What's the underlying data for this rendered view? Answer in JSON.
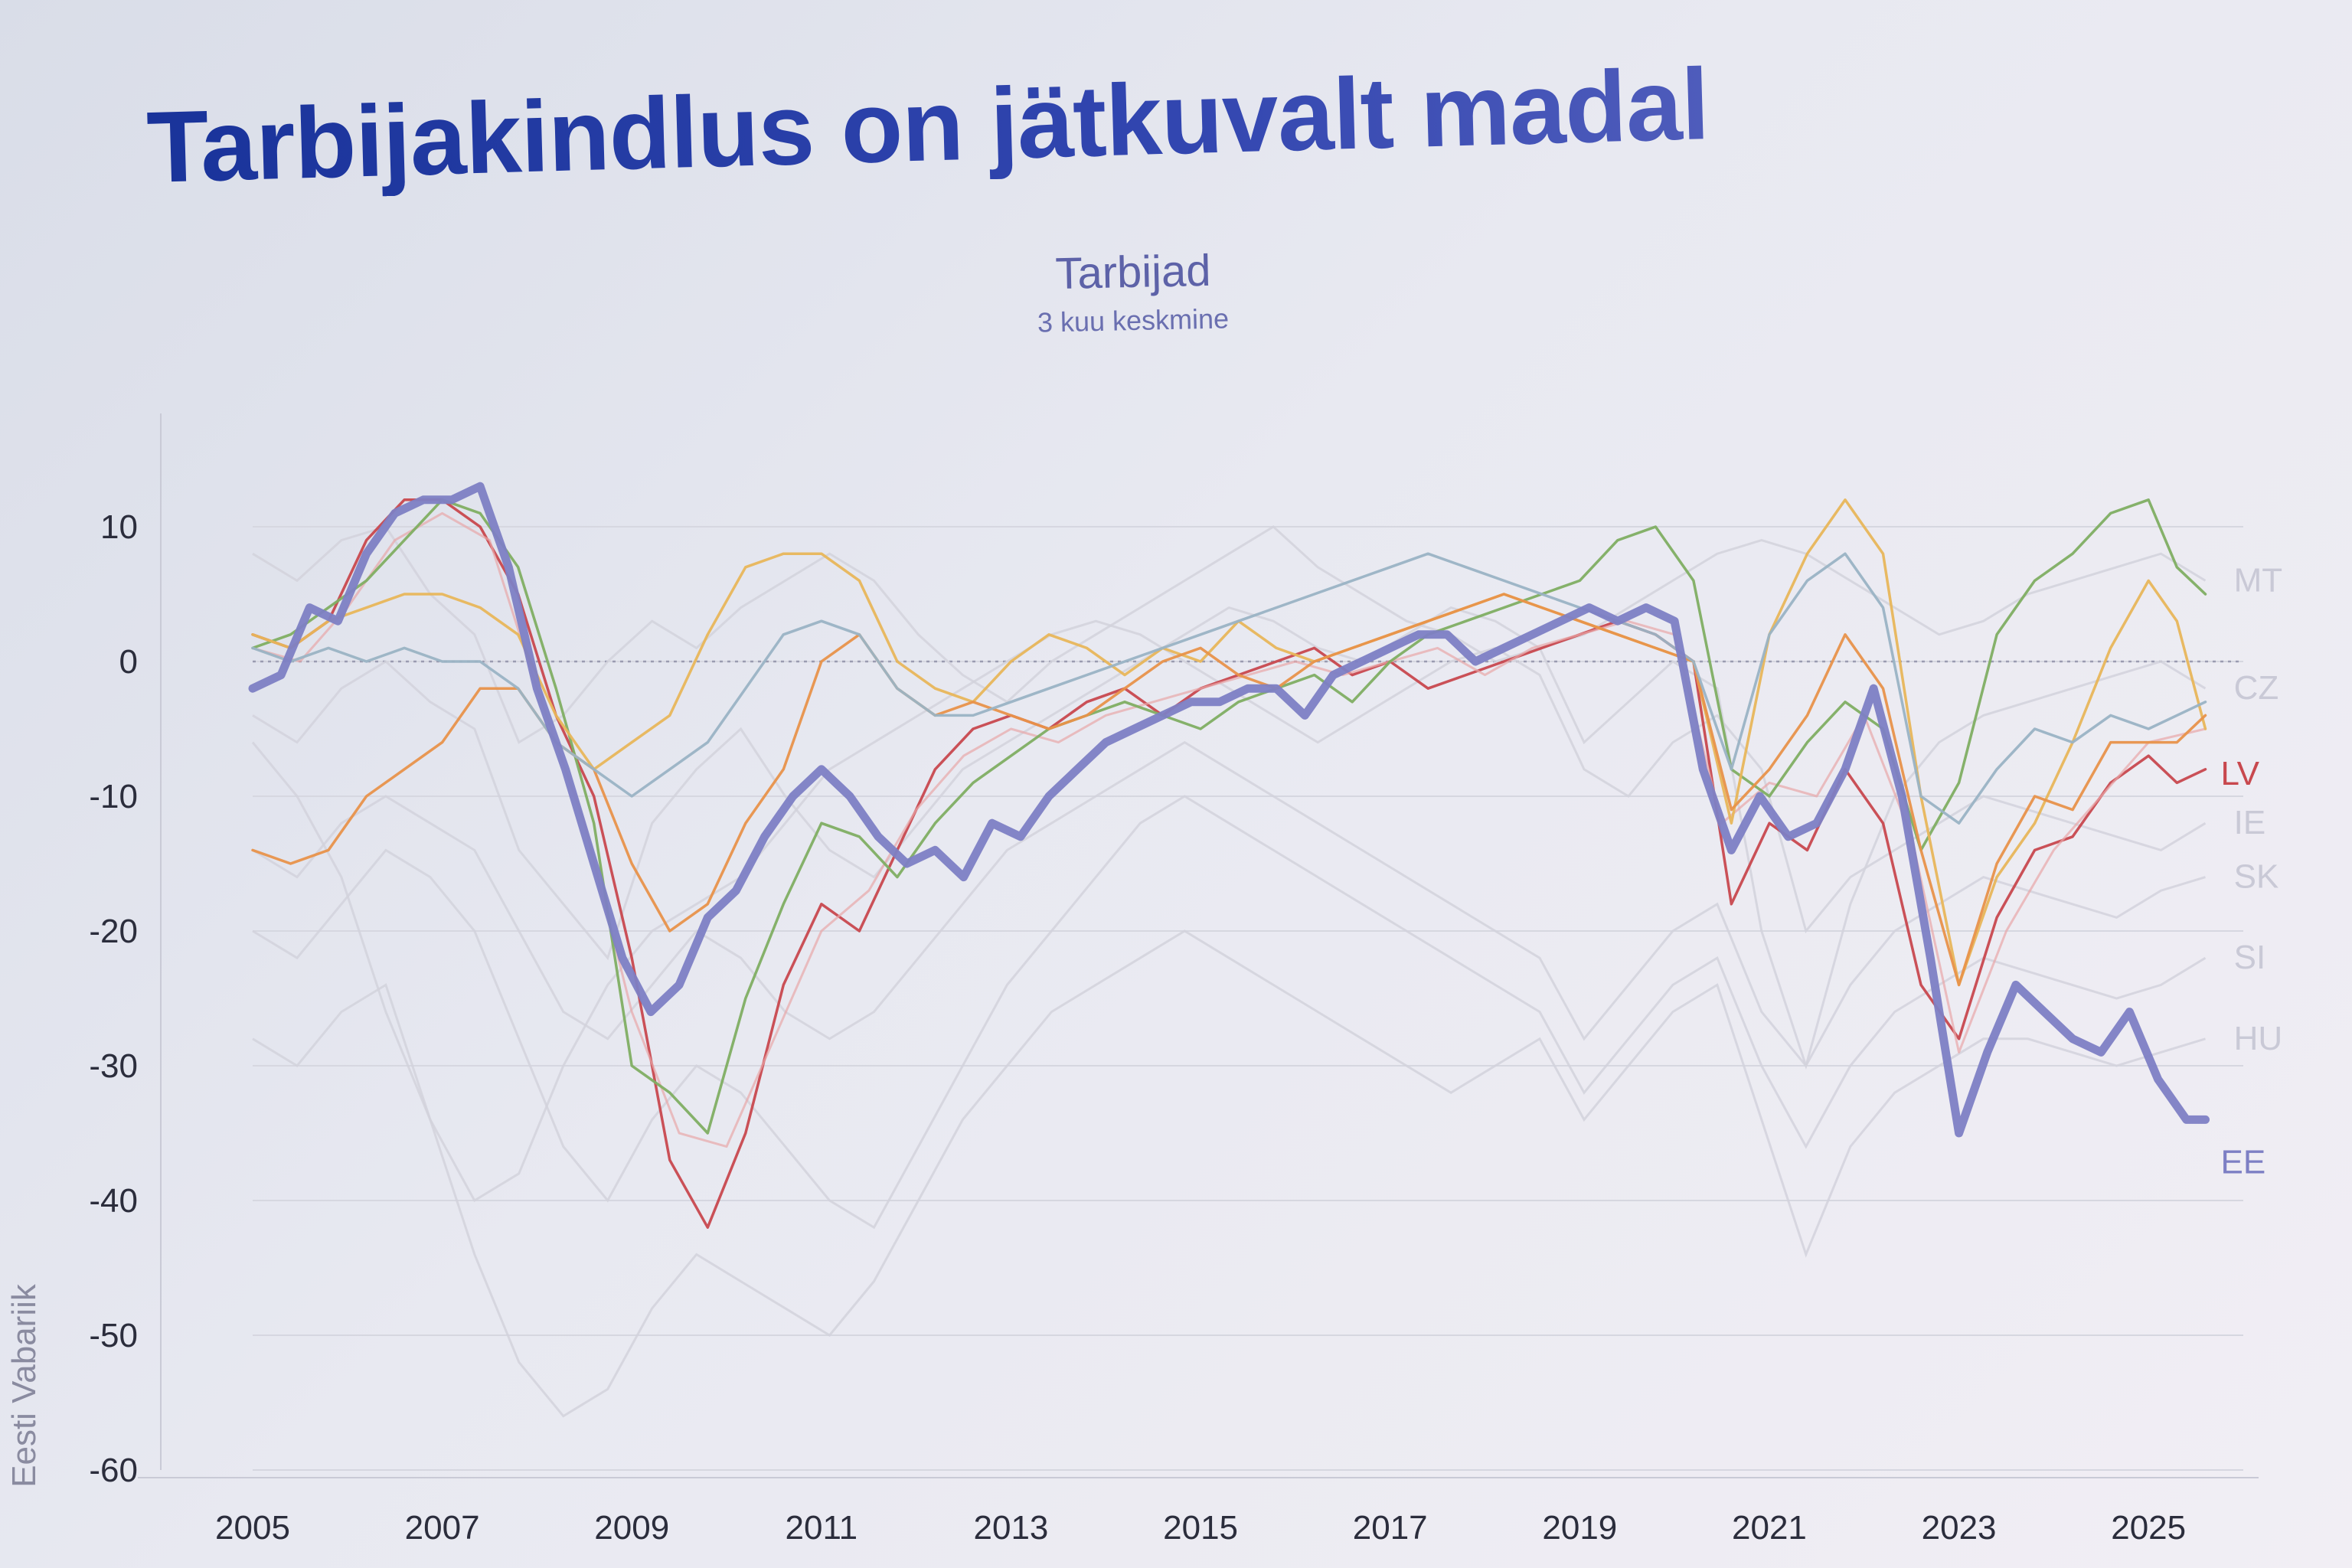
{
  "slide": {
    "title": "Tarbijakindlus on jätkuvalt madal",
    "subtitle": "Tarbijad",
    "subnote": "3 kuu keskmine"
  },
  "chart_data": {
    "type": "line",
    "ylabel": "Eesti Vabariik",
    "ylim": [
      -60,
      15
    ],
    "xlim": [
      2005,
      2026
    ],
    "yticks": [
      10,
      0,
      -10,
      -20,
      -30,
      -40,
      -50,
      -60
    ],
    "xticks": [
      2005,
      2007,
      2009,
      2011,
      2013,
      2015,
      2017,
      2019,
      2021,
      2023,
      2025
    ],
    "reference_line": 0,
    "series": [
      {
        "name": "EE",
        "color": "#7d7fc4",
        "highlight": true,
        "x": [
          2005.0,
          2005.3,
          2005.6,
          2005.9,
          2006.2,
          2006.5,
          2006.8,
          2007.1,
          2007.4,
          2007.7,
          2008.0,
          2008.3,
          2008.6,
          2008.9,
          2009.2,
          2009.5,
          2009.8,
          2010.1,
          2010.4,
          2010.7,
          2011.0,
          2011.3,
          2011.6,
          2011.9,
          2012.2,
          2012.5,
          2012.8,
          2013.1,
          2013.4,
          2013.7,
          2014.0,
          2014.3,
          2014.6,
          2014.9,
          2015.2,
          2015.5,
          2015.8,
          2016.1,
          2016.4,
          2016.7,
          2017.0,
          2017.3,
          2017.6,
          2017.9,
          2018.2,
          2018.5,
          2018.8,
          2019.1,
          2019.4,
          2019.7,
          2020.0,
          2020.3,
          2020.6,
          2020.9,
          2021.2,
          2021.5,
          2021.8,
          2022.1,
          2022.4,
          2022.7,
          2023.0,
          2023.3,
          2023.6,
          2023.9,
          2024.2,
          2024.5,
          2024.8,
          2025.1,
          2025.4,
          2025.6
        ],
        "y": [
          -2,
          -1,
          4,
          3,
          8,
          11,
          12,
          12,
          13,
          7,
          -2,
          -8,
          -15,
          -22,
          -26,
          -24,
          -19,
          -17,
          -13,
          -10,
          -8,
          -10,
          -13,
          -15,
          -14,
          -16,
          -12,
          -13,
          -10,
          -8,
          -6,
          -5,
          -4,
          -3,
          -3,
          -2,
          -2,
          -4,
          -1,
          0,
          1,
          2,
          2,
          0,
          1,
          2,
          3,
          4,
          3,
          4,
          3,
          -8,
          -14,
          -10,
          -13,
          -12,
          -8,
          -2,
          -10,
          -22,
          -35,
          -29,
          -24,
          -26,
          -28,
          -29,
          -26,
          -31,
          -34,
          -34
        ]
      },
      {
        "name": "LV",
        "color": "#c8484e",
        "x": [
          2005.0,
          2005.4,
          2005.8,
          2006.2,
          2006.6,
          2007.0,
          2007.4,
          2007.8,
          2008.2,
          2008.6,
          2009.0,
          2009.4,
          2009.8,
          2010.2,
          2010.6,
          2011.0,
          2011.4,
          2011.8,
          2012.2,
          2012.6,
          2013.0,
          2013.4,
          2013.8,
          2014.2,
          2014.6,
          2015.0,
          2015.4,
          2015.8,
          2016.2,
          2016.6,
          2017.0,
          2017.4,
          2017.8,
          2018.2,
          2018.6,
          2019.0,
          2019.4,
          2019.8,
          2020.2,
          2020.6,
          2021.0,
          2021.4,
          2021.8,
          2022.2,
          2022.6,
          2023.0,
          2023.4,
          2023.8,
          2024.2,
          2024.6,
          2025.0,
          2025.3,
          2025.6
        ],
        "y": [
          2,
          1,
          3,
          9,
          12,
          12,
          10,
          5,
          -4,
          -10,
          -22,
          -37,
          -42,
          -35,
          -24,
          -18,
          -20,
          -14,
          -8,
          -5,
          -4,
          -5,
          -3,
          -2,
          -4,
          -2,
          -1,
          0,
          1,
          -1,
          0,
          -2,
          -1,
          0,
          1,
          2,
          3,
          2,
          0,
          -18,
          -12,
          -14,
          -8,
          -12,
          -24,
          -28,
          -19,
          -14,
          -13,
          -9,
          -7,
          -9,
          -8
        ]
      },
      {
        "name": "",
        "color": "#e8a6a8",
        "faint": true,
        "x": [
          2005.0,
          2005.5,
          2006.0,
          2006.5,
          2007.0,
          2007.5,
          2008.0,
          2008.5,
          2009.0,
          2009.5,
          2010.0,
          2010.5,
          2011.0,
          2011.5,
          2012.0,
          2012.5,
          2013.0,
          2013.5,
          2014.0,
          2014.5,
          2015.0,
          2015.5,
          2016.0,
          2016.5,
          2017.0,
          2017.5,
          2018.0,
          2018.5,
          2019.0,
          2019.5,
          2020.0,
          2020.5,
          2021.0,
          2021.5,
          2022.0,
          2022.5,
          2023.0,
          2023.5,
          2024.0,
          2024.5,
          2025.0,
          2025.6
        ],
        "y": [
          1,
          0,
          4,
          9,
          11,
          9,
          -2,
          -12,
          -26,
          -35,
          -36,
          -28,
          -20,
          -17,
          -11,
          -7,
          -5,
          -6,
          -4,
          -3,
          -2,
          -1,
          0,
          -1,
          0,
          1,
          -1,
          1,
          2,
          3,
          2,
          -12,
          -9,
          -10,
          -4,
          -13,
          -29,
          -20,
          -14,
          -10,
          -6,
          -5
        ]
      },
      {
        "name": "",
        "color": "#7fae62",
        "x": [
          2005.0,
          2005.4,
          2005.8,
          2006.2,
          2006.6,
          2007.0,
          2007.4,
          2007.8,
          2008.2,
          2008.6,
          2009.0,
          2009.4,
          2009.8,
          2010.2,
          2010.6,
          2011.0,
          2011.4,
          2011.8,
          2012.2,
          2012.6,
          2013.0,
          2013.4,
          2013.8,
          2014.2,
          2014.6,
          2015.0,
          2015.4,
          2015.8,
          2016.2,
          2016.6,
          2017.0,
          2017.4,
          2017.8,
          2018.2,
          2018.6,
          2019.0,
          2019.4,
          2019.8,
          2020.2,
          2020.6,
          2021.0,
          2021.4,
          2021.8,
          2022.2,
          2022.6,
          2023.0,
          2023.4,
          2023.8,
          2024.2,
          2024.6,
          2025.0,
          2025.3,
          2025.6
        ],
        "y": [
          1,
          2,
          4,
          6,
          9,
          12,
          11,
          7,
          -2,
          -12,
          -30,
          -32,
          -35,
          -25,
          -18,
          -12,
          -13,
          -16,
          -12,
          -9,
          -7,
          -5,
          -4,
          -3,
          -4,
          -5,
          -3,
          -2,
          -1,
          -3,
          0,
          2,
          3,
          4,
          5,
          6,
          9,
          10,
          6,
          -8,
          -10,
          -6,
          -3,
          -5,
          -14,
          -9,
          2,
          6,
          8,
          11,
          12,
          7,
          5
        ]
      },
      {
        "name": "",
        "color": "#e8b65a",
        "x": [
          2005.0,
          2005.4,
          2005.8,
          2006.2,
          2006.6,
          2007.0,
          2007.4,
          2007.8,
          2008.2,
          2008.6,
          2009.0,
          2009.4,
          2009.8,
          2010.2,
          2010.6,
          2011.0,
          2011.4,
          2011.8,
          2012.2,
          2012.6,
          2013.0,
          2013.4,
          2013.8,
          2014.2,
          2014.6,
          2015.0,
          2015.4,
          2015.8,
          2016.2,
          2016.6,
          2017.0,
          2017.4,
          2017.8,
          2018.2,
          2018.6,
          2019.0,
          2019.4,
          2019.8,
          2020.2,
          2020.6,
          2021.0,
          2021.4,
          2021.8,
          2022.2,
          2022.6,
          2023.0,
          2023.4,
          2023.8,
          2024.2,
          2024.6,
          2025.0,
          2025.3,
          2025.6
        ],
        "y": [
          2,
          1,
          3,
          4,
          5,
          5,
          4,
          2,
          -4,
          -8,
          -6,
          -4,
          2,
          7,
          8,
          8,
          6,
          0,
          -2,
          -3,
          0,
          2,
          1,
          -1,
          1,
          0,
          3,
          1,
          0,
          1,
          2,
          3,
          4,
          5,
          4,
          3,
          2,
          1,
          0,
          -12,
          2,
          8,
          12,
          8,
          -10,
          -24,
          -16,
          -12,
          -6,
          1,
          6,
          3,
          -5
        ]
      },
      {
        "name": "",
        "color": "#e8924a",
        "x": [
          2005.0,
          2005.4,
          2005.8,
          2006.2,
          2006.6,
          2007.0,
          2007.4,
          2007.8,
          2008.2,
          2008.6,
          2009.0,
          2009.4,
          2009.8,
          2010.2,
          2010.6,
          2011.0,
          2011.4,
          2011.8,
          2012.2,
          2012.6,
          2013.0,
          2013.4,
          2013.8,
          2014.2,
          2014.6,
          2015.0,
          2015.4,
          2015.8,
          2016.2,
          2016.6,
          2017.0,
          2017.4,
          2017.8,
          2018.2,
          2018.6,
          2019.0,
          2019.4,
          2019.8,
          2020.2,
          2020.6,
          2021.0,
          2021.4,
          2021.8,
          2022.2,
          2022.6,
          2023.0,
          2023.4,
          2023.8,
          2024.2,
          2024.6,
          2025.0,
          2025.3,
          2025.6
        ],
        "y": [
          -14,
          -15,
          -14,
          -10,
          -8,
          -6,
          -2,
          -2,
          -6,
          -8,
          -15,
          -20,
          -18,
          -12,
          -8,
          0,
          2,
          -2,
          -4,
          -3,
          -4,
          -5,
          -4,
          -2,
          0,
          1,
          -1,
          -2,
          0,
          1,
          2,
          3,
          4,
          5,
          4,
          3,
          2,
          1,
          0,
          -11,
          -8,
          -4,
          2,
          -2,
          -14,
          -24,
          -15,
          -10,
          -11,
          -6,
          -6,
          -6,
          -4
        ]
      },
      {
        "name": "",
        "color": "#9ab3c4",
        "x": [
          2005.0,
          2005.4,
          2005.8,
          2006.2,
          2006.6,
          2007.0,
          2007.4,
          2007.8,
          2008.2,
          2008.6,
          2009.0,
          2009.4,
          2009.8,
          2010.2,
          2010.6,
          2011.0,
          2011.4,
          2011.8,
          2012.2,
          2012.6,
          2013.0,
          2013.4,
          2013.8,
          2014.2,
          2014.6,
          2015.0,
          2015.4,
          2015.8,
          2016.2,
          2016.6,
          2017.0,
          2017.4,
          2017.8,
          2018.2,
          2018.6,
          2019.0,
          2019.4,
          2019.8,
          2020.2,
          2020.6,
          2021.0,
          2021.4,
          2021.8,
          2022.2,
          2022.6,
          2023.0,
          2023.4,
          2023.8,
          2024.2,
          2024.6,
          2025.0,
          2025.3,
          2025.6
        ],
        "y": [
          1,
          0,
          1,
          0,
          1,
          0,
          0,
          -2,
          -6,
          -8,
          -10,
          -8,
          -6,
          -2,
          2,
          3,
          2,
          -2,
          -4,
          -4,
          -3,
          -2,
          -1,
          0,
          1,
          2,
          3,
          4,
          5,
          6,
          7,
          8,
          7,
          6,
          5,
          4,
          3,
          2,
          0,
          -8,
          2,
          6,
          8,
          4,
          -10,
          -12,
          -8,
          -5,
          -6,
          -4,
          -5,
          -4,
          -3
        ]
      }
    ],
    "background_series_labels": [
      "MT",
      "CZ",
      "IE",
      "SK",
      "SI",
      "HU"
    ],
    "background_series": [
      {
        "name": "MT",
        "y": [
          8,
          6,
          9,
          10,
          5,
          2,
          -6,
          -4,
          0,
          3,
          1,
          4,
          6,
          8,
          6,
          2,
          -1,
          -3,
          0,
          2,
          4,
          6,
          8,
          10,
          7,
          5,
          3,
          2,
          0,
          1,
          2,
          4,
          6,
          8,
          9,
          8,
          6,
          4,
          2,
          3,
          5,
          6,
          7,
          8,
          6
        ]
      },
      {
        "name": "CZ",
        "y": [
          -4,
          -6,
          -2,
          0,
          -3,
          -5,
          -14,
          -18,
          -22,
          -12,
          -8,
          -5,
          -10,
          -14,
          -16,
          -12,
          -8,
          -6,
          -4,
          -2,
          0,
          2,
          4,
          3,
          1,
          0,
          2,
          4,
          3,
          1,
          -6,
          -3,
          0,
          -2,
          -20,
          -30,
          -18,
          -10,
          -6,
          -4,
          -3,
          -2,
          -1,
          0,
          -2
        ]
      },
      {
        "name": "IE",
        "y": [
          -6,
          -10,
          -16,
          -26,
          -34,
          -40,
          -38,
          -30,
          -24,
          -20,
          -18,
          -16,
          -12,
          -8,
          -6,
          -4,
          -2,
          0,
          2,
          3,
          2,
          0,
          -2,
          -4,
          -6,
          -4,
          -2,
          0,
          1,
          -1,
          -8,
          -10,
          -6,
          -4,
          -8,
          -20,
          -16,
          -14,
          -12,
          -10,
          -11,
          -12,
          -13,
          -14,
          -12
        ]
      },
      {
        "name": "SK",
        "y": [
          -14,
          -16,
          -12,
          -10,
          -12,
          -14,
          -20,
          -26,
          -28,
          -24,
          -20,
          -22,
          -26,
          -28,
          -26,
          -22,
          -18,
          -14,
          -12,
          -10,
          -8,
          -6,
          -8,
          -10,
          -12,
          -14,
          -16,
          -18,
          -20,
          -22,
          -28,
          -24,
          -20,
          -18,
          -26,
          -30,
          -24,
          -20,
          -18,
          -16,
          -17,
          -18,
          -19,
          -17,
          -16
        ]
      },
      {
        "name": "SI",
        "y": [
          -20,
          -22,
          -18,
          -14,
          -16,
          -20,
          -28,
          -36,
          -40,
          -34,
          -30,
          -32,
          -36,
          -40,
          -42,
          -36,
          -30,
          -24,
          -20,
          -16,
          -12,
          -10,
          -12,
          -14,
          -16,
          -18,
          -20,
          -22,
          -24,
          -26,
          -32,
          -28,
          -24,
          -22,
          -30,
          -36,
          -30,
          -26,
          -24,
          -22,
          -23,
          -24,
          -25,
          -24,
          -22
        ]
      },
      {
        "name": "HU",
        "y": [
          -28,
          -30,
          -26,
          -24,
          -34,
          -44,
          -52,
          -56,
          -54,
          -48,
          -44,
          -46,
          -48,
          -50,
          -46,
          -40,
          -34,
          -30,
          -26,
          -24,
          -22,
          -20,
          -22,
          -24,
          -26,
          -28,
          -30,
          -32,
          -30,
          -28,
          -34,
          -30,
          -26,
          -24,
          -34,
          -44,
          -36,
          -32,
          -30,
          -28,
          -28,
          -29,
          -30,
          -29,
          -28
        ]
      }
    ]
  }
}
